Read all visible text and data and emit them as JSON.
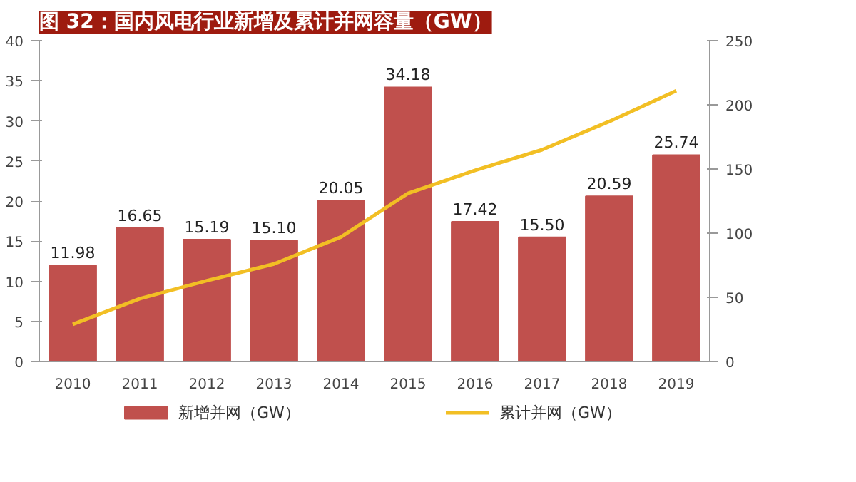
{
  "chart_data": {
    "type": "bar",
    "title": "图 32：国内风电行业新增及累计并网容量（GW）",
    "categories": [
      "2010",
      "2011",
      "2012",
      "2013",
      "2014",
      "2015",
      "2016",
      "2017",
      "2018",
      "2019"
    ],
    "series": [
      {
        "name": "新增并网（GW）",
        "color": "#c0504d",
        "values": [
          11.98,
          16.65,
          15.19,
          15.1,
          20.05,
          34.18,
          17.42,
          15.5,
          20.59,
          25.74
        ],
        "value_labels": [
          "11.98",
          "16.65",
          "15.19",
          "15.10",
          "20.05",
          "34.18",
          "17.42",
          "15.50",
          "20.59",
          "25.74"
        ]
      },
      {
        "name": "累计并网（GW）",
        "type": "line",
        "axis": "y2",
        "color": "#f2bf24",
        "values": [
          29,
          49,
          63,
          76,
          97,
          131,
          149,
          165,
          187,
          211
        ]
      }
    ],
    "ylim": [
      0,
      40
    ],
    "yticks": [
      0,
      5,
      10,
      15,
      20,
      25,
      30,
      35,
      40
    ],
    "y2lim": [
      0,
      250
    ],
    "y2ticks": [
      0,
      50,
      100,
      150,
      200,
      250
    ],
    "grid": false,
    "legend": "bottom"
  }
}
